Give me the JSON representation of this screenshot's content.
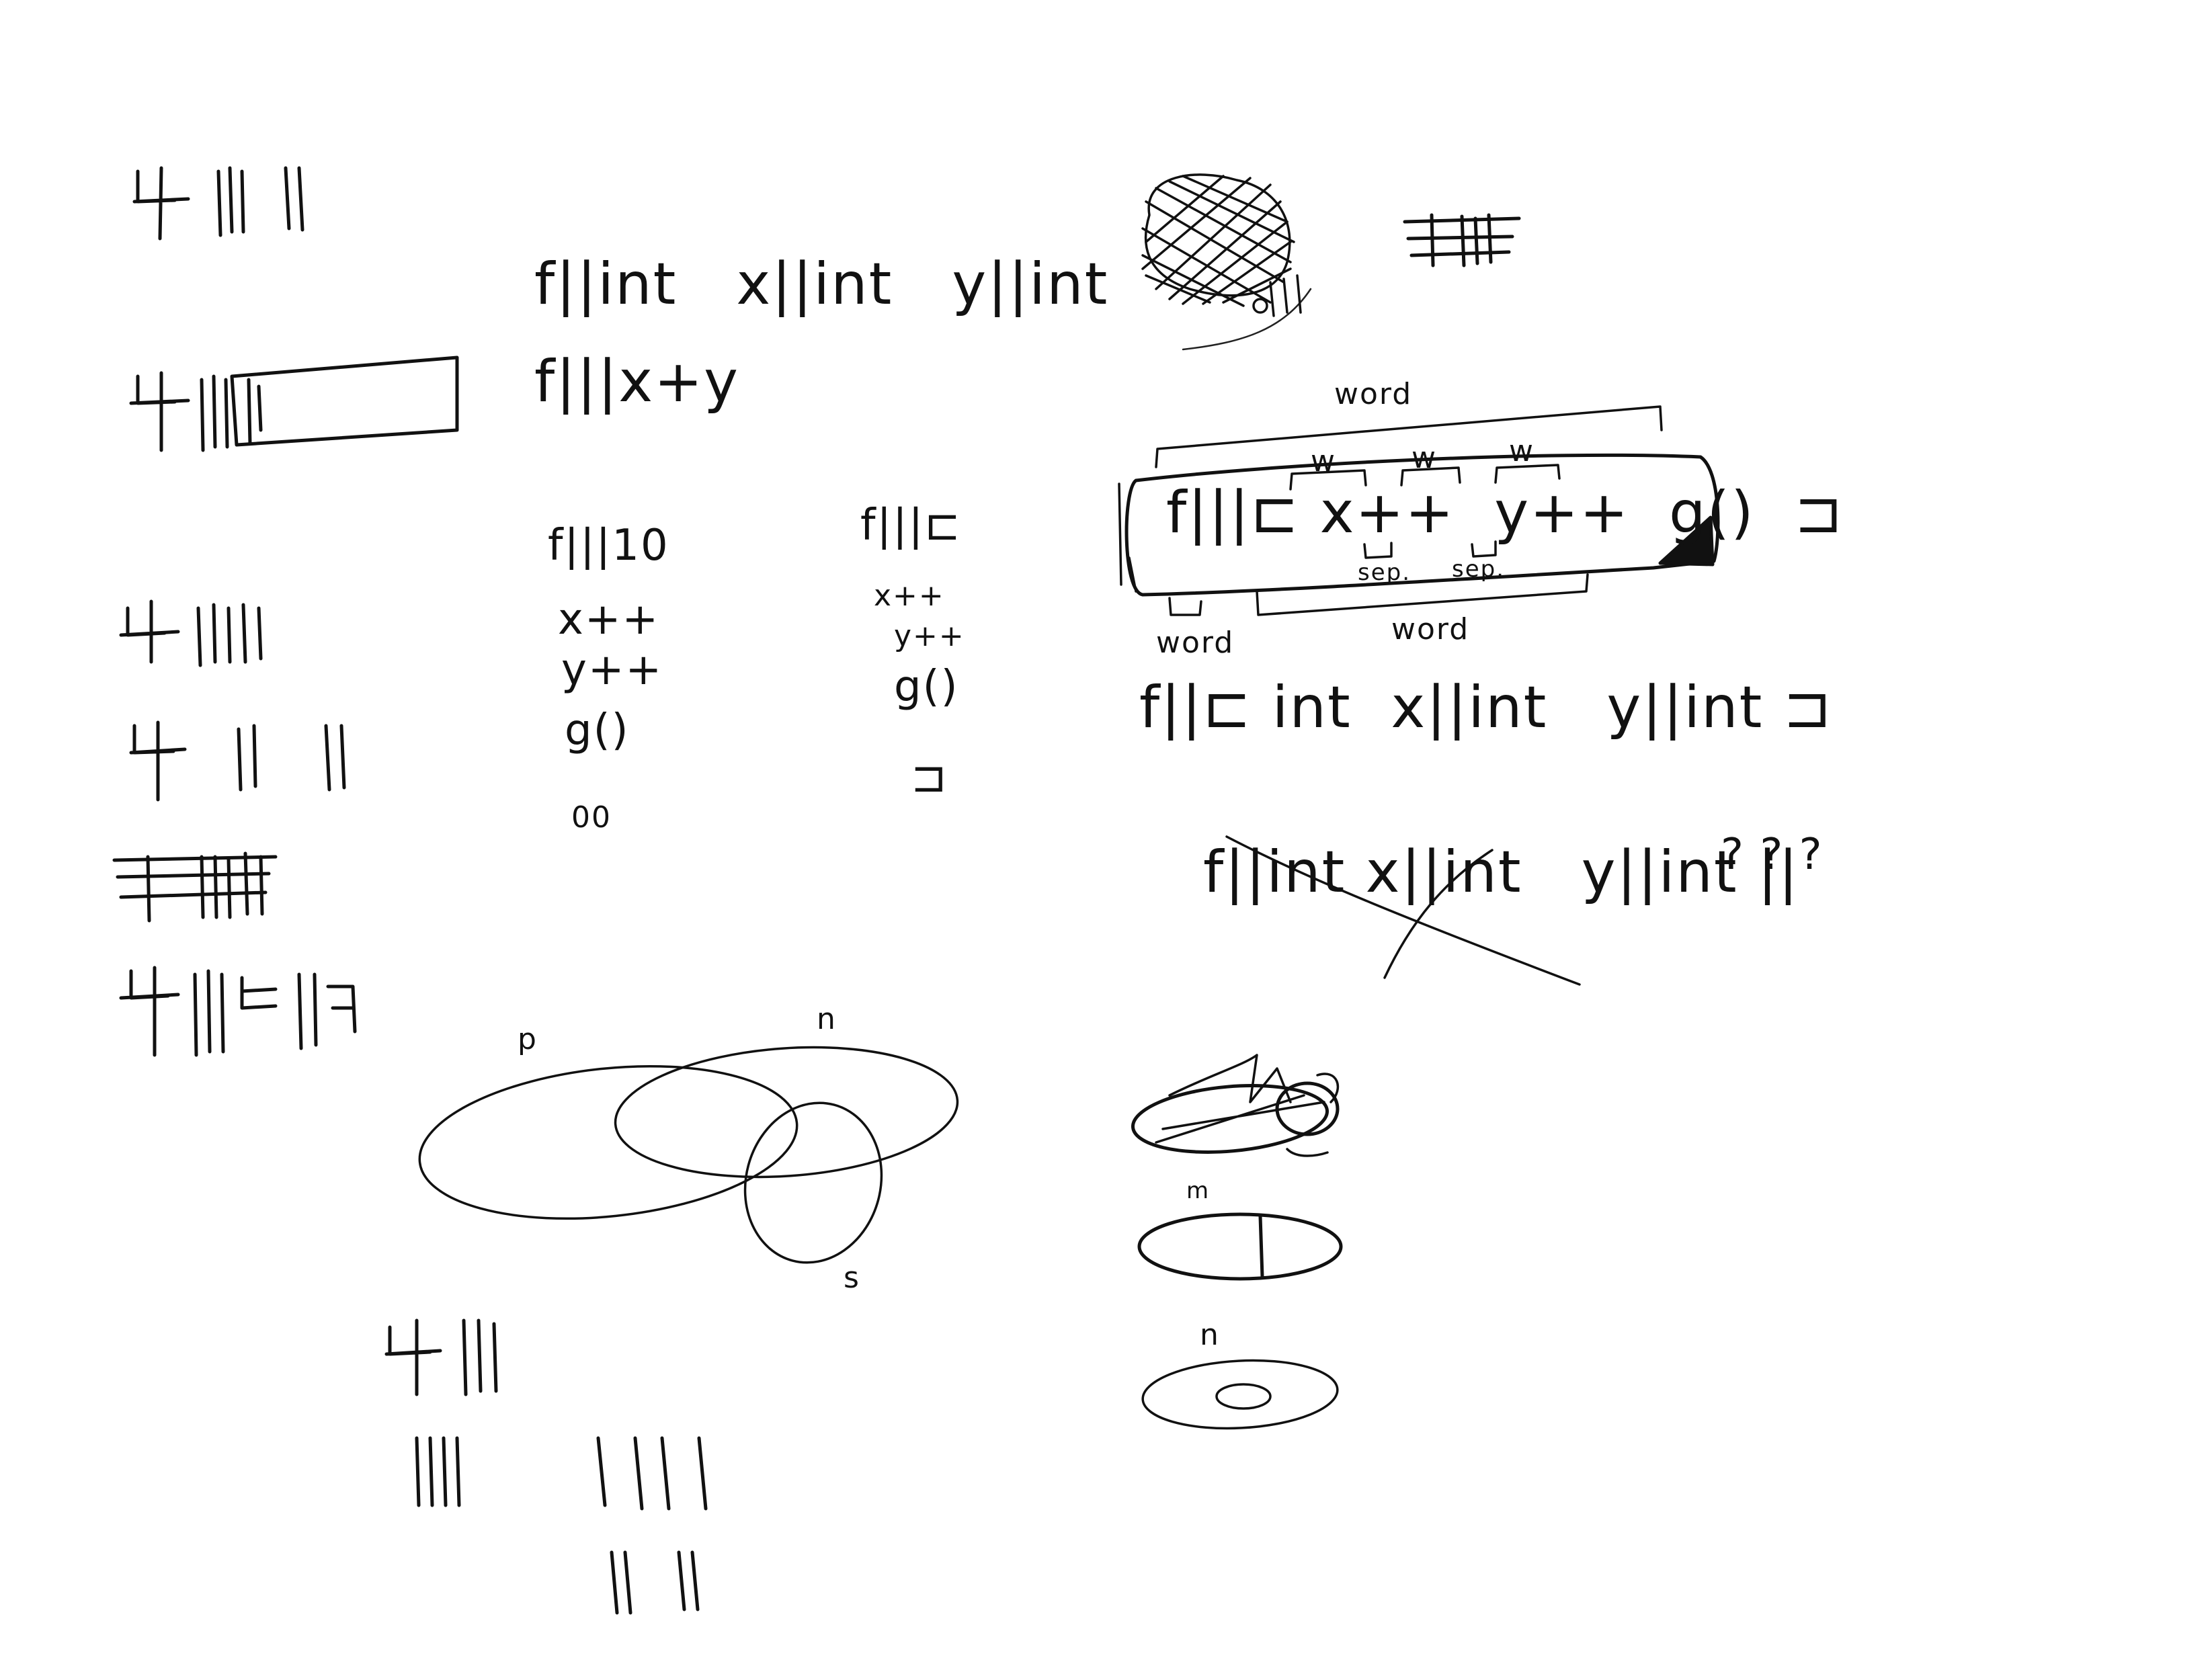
{
  "sheet": {
    "code_line_1": "f||int   x||int   y||int",
    "code_line_2": "f|||x+y",
    "list_a": [
      "f|||10",
      "x++",
      "y++",
      "g()",
      "00"
    ],
    "list_b": [
      "f|||⊏",
      "x++",
      "y++",
      "g()",
      "⊐"
    ],
    "labels": {
      "word_top": "word",
      "w1": "w",
      "w2": "w",
      "w3": "w",
      "sep1": "sep.",
      "sep2": "sep.",
      "word_bottom_left": "word",
      "word_bottom_right": "word"
    },
    "box_code": "f|||⊏ x++  y++  g()  ⊐",
    "code_line_3": "f||⊏ int  x||int   y||int ⊐",
    "crossed_code": "f||int x||int   y||int ||",
    "question_marks": "? ? ?",
    "venn_labels": [
      "p",
      "n",
      "s"
    ],
    "disc_labels": [
      "m",
      "n"
    ],
    "ink_color": "#111111",
    "paper_color": "#ffffff"
  }
}
